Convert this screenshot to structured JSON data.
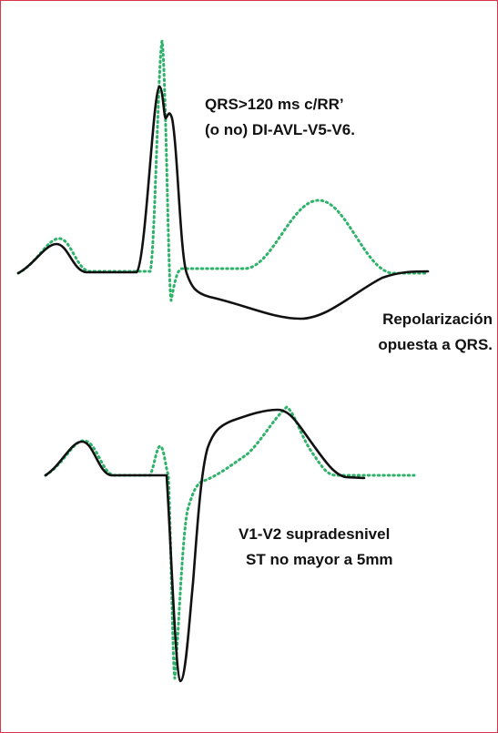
{
  "annotations": [
    {
      "lines": [
        "QRS>120 ms c/RR’",
        "(o no) DI-AVL-V5-V6."
      ]
    },
    {
      "lines": [
        "Repolarización",
        "opuesta a QRS."
      ]
    },
    {
      "lines": [
        "V1-V2 supradesnivel",
        "ST no mayor a 5mm"
      ]
    }
  ]
}
